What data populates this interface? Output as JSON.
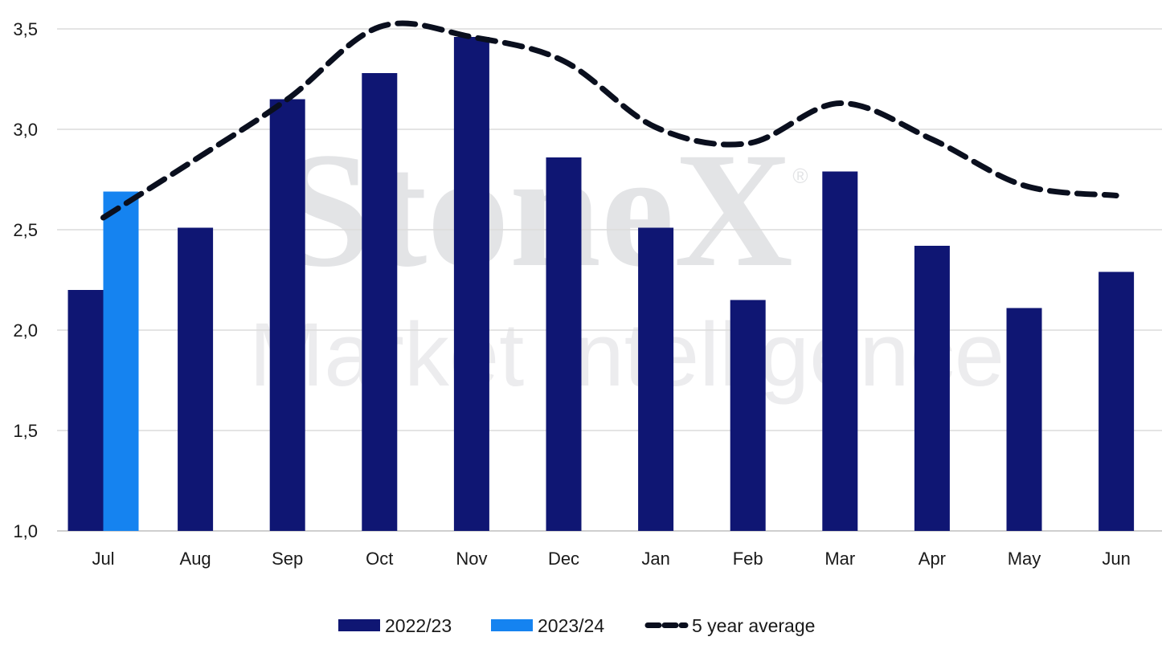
{
  "watermark": {
    "brand": "StoneX",
    "registered": "®",
    "tagline": "Market Intelligence"
  },
  "legend": {
    "items": [
      {
        "label": "2022/23",
        "color": "#0f1673",
        "kind": "bar"
      },
      {
        "label": "2023/24",
        "color": "#1583f0",
        "kind": "bar"
      },
      {
        "label": "5 year average",
        "color": "#0a0f1e",
        "kind": "dashed-line"
      }
    ]
  },
  "chart_data": {
    "type": "bar",
    "categories": [
      "Jul",
      "Aug",
      "Sep",
      "Oct",
      "Nov",
      "Dec",
      "Jan",
      "Feb",
      "Mar",
      "Apr",
      "May",
      "Jun"
    ],
    "series": [
      {
        "name": "2022/23",
        "type": "bar",
        "color": "#0f1673",
        "values": [
          2.2,
          2.51,
          3.15,
          3.28,
          3.46,
          2.86,
          2.51,
          2.15,
          2.79,
          2.42,
          2.11,
          2.29
        ]
      },
      {
        "name": "2023/24",
        "type": "bar",
        "color": "#1583f0",
        "values": [
          2.69,
          null,
          null,
          null,
          null,
          null,
          null,
          null,
          null,
          null,
          null,
          null
        ]
      },
      {
        "name": "5 year average",
        "type": "line",
        "style": "dashed",
        "color": "#0a0f1e",
        "values": [
          2.56,
          2.85,
          3.15,
          3.51,
          3.46,
          3.34,
          3.01,
          2.93,
          3.13,
          2.95,
          2.72,
          2.67
        ]
      }
    ],
    "ylim": [
      1.0,
      3.5
    ],
    "yticks": [
      "1,0",
      "1,5",
      "2,0",
      "2,5",
      "3,0",
      "3,5"
    ],
    "ytick_values": [
      1.0,
      1.5,
      2.0,
      2.5,
      3.0,
      3.5
    ],
    "grid": true,
    "legend_position": "bottom-center"
  }
}
